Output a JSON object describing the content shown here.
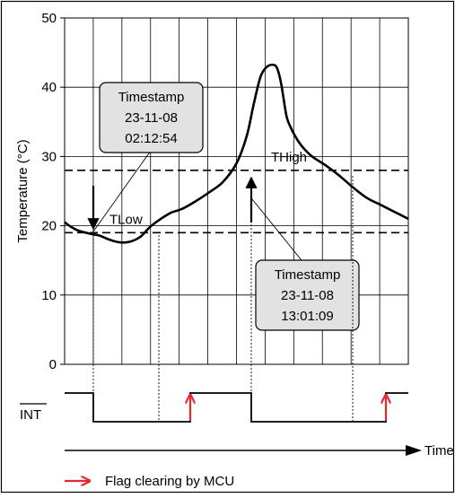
{
  "chart_data": {
    "type": "line",
    "title": "",
    "ylabel": "Temperature (°C)",
    "xlabel": "Time",
    "ylim": [
      0,
      50
    ],
    "yticks": [
      "0",
      "10",
      "20",
      "30",
      "40",
      "50"
    ],
    "grid": true,
    "thresholds": [
      {
        "name": "THigh",
        "value": 28
      },
      {
        "name": "TLow",
        "value": 19
      }
    ],
    "series": [
      {
        "x": [
          0,
          0.02,
          0.04,
          0.07,
          0.1,
          0.13,
          0.16,
          0.19,
          0.22,
          0.25,
          0.28,
          0.31,
          0.34,
          0.38,
          0.42,
          0.46,
          0.5,
          0.53,
          0.55,
          0.57,
          0.59,
          0.61,
          0.62,
          0.63,
          0.645,
          0.655,
          0.67,
          0.69,
          0.72,
          0.76,
          0.8,
          0.84,
          0.88,
          0.92,
          0.96,
          1.0
        ],
        "values": [
          20.5,
          19.8,
          19.3,
          18.9,
          18.6,
          18.0,
          17.6,
          17.7,
          18.4,
          19.9,
          21.0,
          21.9,
          22.4,
          23.5,
          24.8,
          26.3,
          29.0,
          33.0,
          37.5,
          41.5,
          43.0,
          43.2,
          42.5,
          40.5,
          36.0,
          34.5,
          33.0,
          31.5,
          30.0,
          28.7,
          27.2,
          25.5,
          24.0,
          23.0,
          22.0,
          21.0
        ]
      }
    ]
  },
  "callouts": {
    "low": {
      "line1": "Timestamp",
      "line2": "23-11-08",
      "line3": "02:12:54"
    },
    "high": {
      "line1": "Timestamp",
      "line2": "23-11-08",
      "line3": "13:01:09"
    }
  },
  "int_signal": {
    "label": "INT"
  },
  "legend": {
    "text": "Flag clearing by MCU",
    "color": "#e8262b"
  },
  "colors": {
    "arrow_red": "#e8262b",
    "callout_fill": "#e2e2e2",
    "grid": "#000000"
  }
}
